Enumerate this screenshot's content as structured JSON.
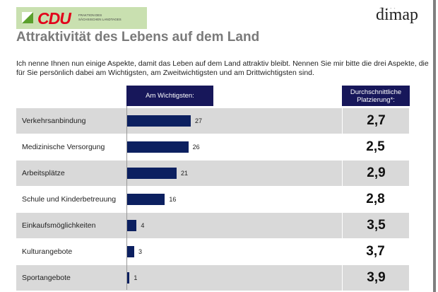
{
  "header": {
    "logo_text": "CDU",
    "logo_subtext": [
      "FRAKTION DES",
      "SÄCHSISCHEN LANDTAGES"
    ],
    "brand": "dimap",
    "title": "Attraktivität des Lebens auf dem Land"
  },
  "intro": "Ich nenne Ihnen nun einige Aspekte, damit das Leben auf dem Land attraktiv bleibt. Nennen Sie mir bitte die drei Aspekte, die für Sie persönlich dabei am Wichtigsten, am Zweitwichtigsten und am Drittwichtigsten sind.",
  "colors": {
    "bar": "#0c2060",
    "header_bg": "#17175a",
    "row_shade": "#d9d9d9",
    "cdu_red": "#e2001a",
    "cdu_green": "#5aa02c"
  },
  "chart_data": {
    "type": "bar",
    "orientation": "horizontal",
    "title": "Attraktivität des Lebens auf dem Land",
    "series_label": "Am Wichtigsten:",
    "avg_label": "Durchschnittliche Platzierung*:",
    "categories": [
      "Verkehrsanbindung",
      "Medizinische Versorgung",
      "Arbeitsplätze",
      "Schule und Kinderbetreuung",
      "Einkaufsmöglichkeiten",
      "Kulturangebote",
      "Sportangebote"
    ],
    "values": [
      27,
      26,
      21,
      16,
      4,
      3,
      1
    ],
    "avg_placement": [
      "2,7",
      "2,5",
      "2,9",
      "2,8",
      "3,5",
      "3,7",
      "3,9"
    ],
    "xlim": [
      0,
      30
    ]
  }
}
